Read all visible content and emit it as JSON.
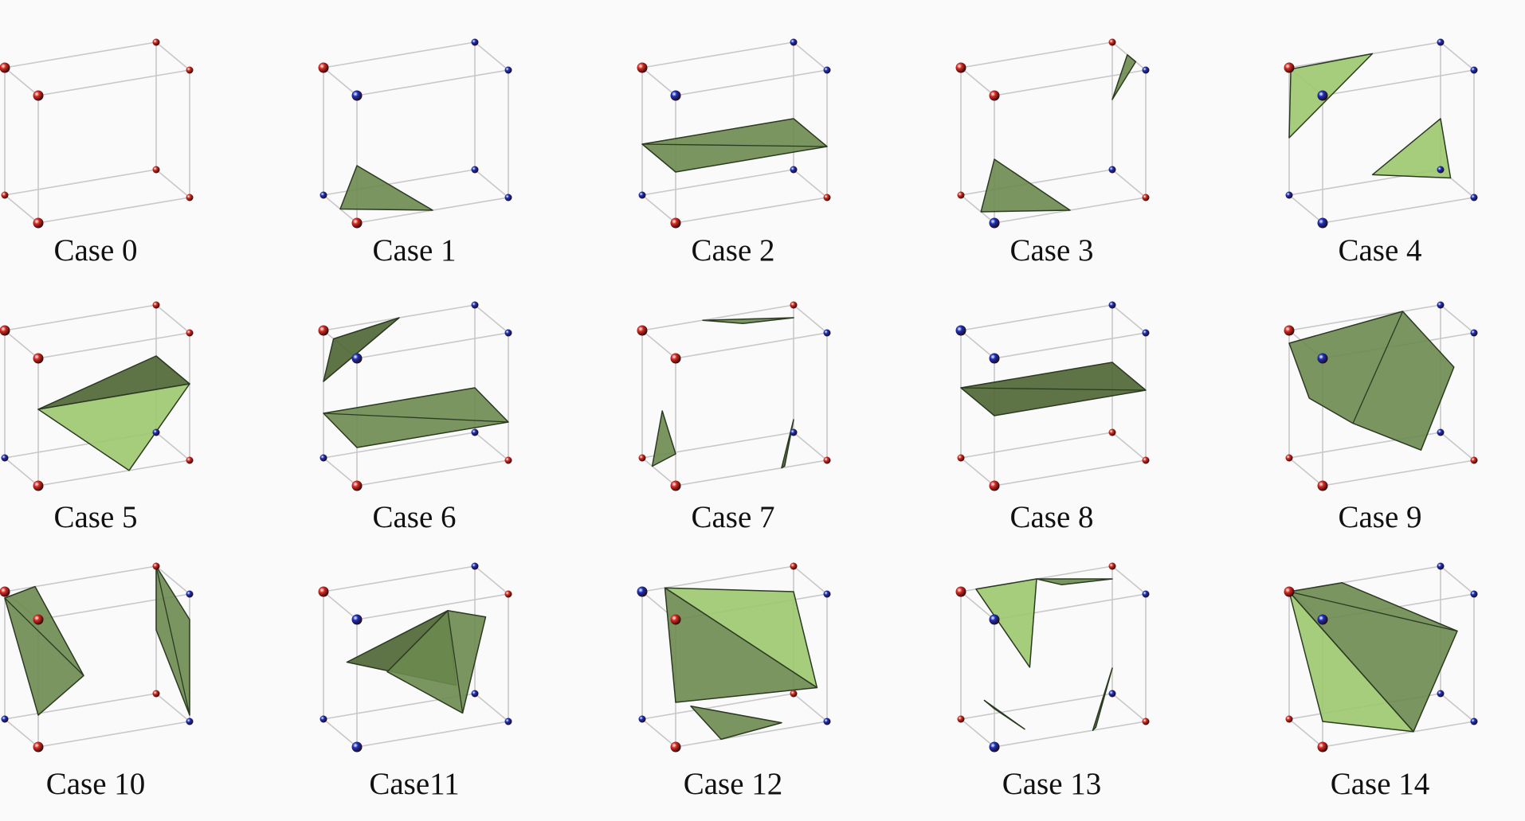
{
  "colors": {
    "edge": "#c8c8c8",
    "vertex_red": "#d62a22",
    "vertex_blue": "#1c2fb8",
    "surface_dark": "#4c6432",
    "surface_mid": "#6c8a4e",
    "surface_light": "#9cc86e",
    "surface_stroke": "#2b3a22"
  },
  "cases": [
    {
      "label": "Case 0"
    },
    {
      "label": "Case 1"
    },
    {
      "label": "Case 2"
    },
    {
      "label": "Case 3"
    },
    {
      "label": "Case 4"
    },
    {
      "label": "Case 5"
    },
    {
      "label": "Case 6"
    },
    {
      "label": "Case 7"
    },
    {
      "label": "Case 8"
    },
    {
      "label": "Case 9"
    },
    {
      "label": "Case 10"
    },
    {
      "label": "Case11"
    },
    {
      "label": "Case 12"
    },
    {
      "label": "Case 13"
    },
    {
      "label": "Case 14"
    }
  ]
}
